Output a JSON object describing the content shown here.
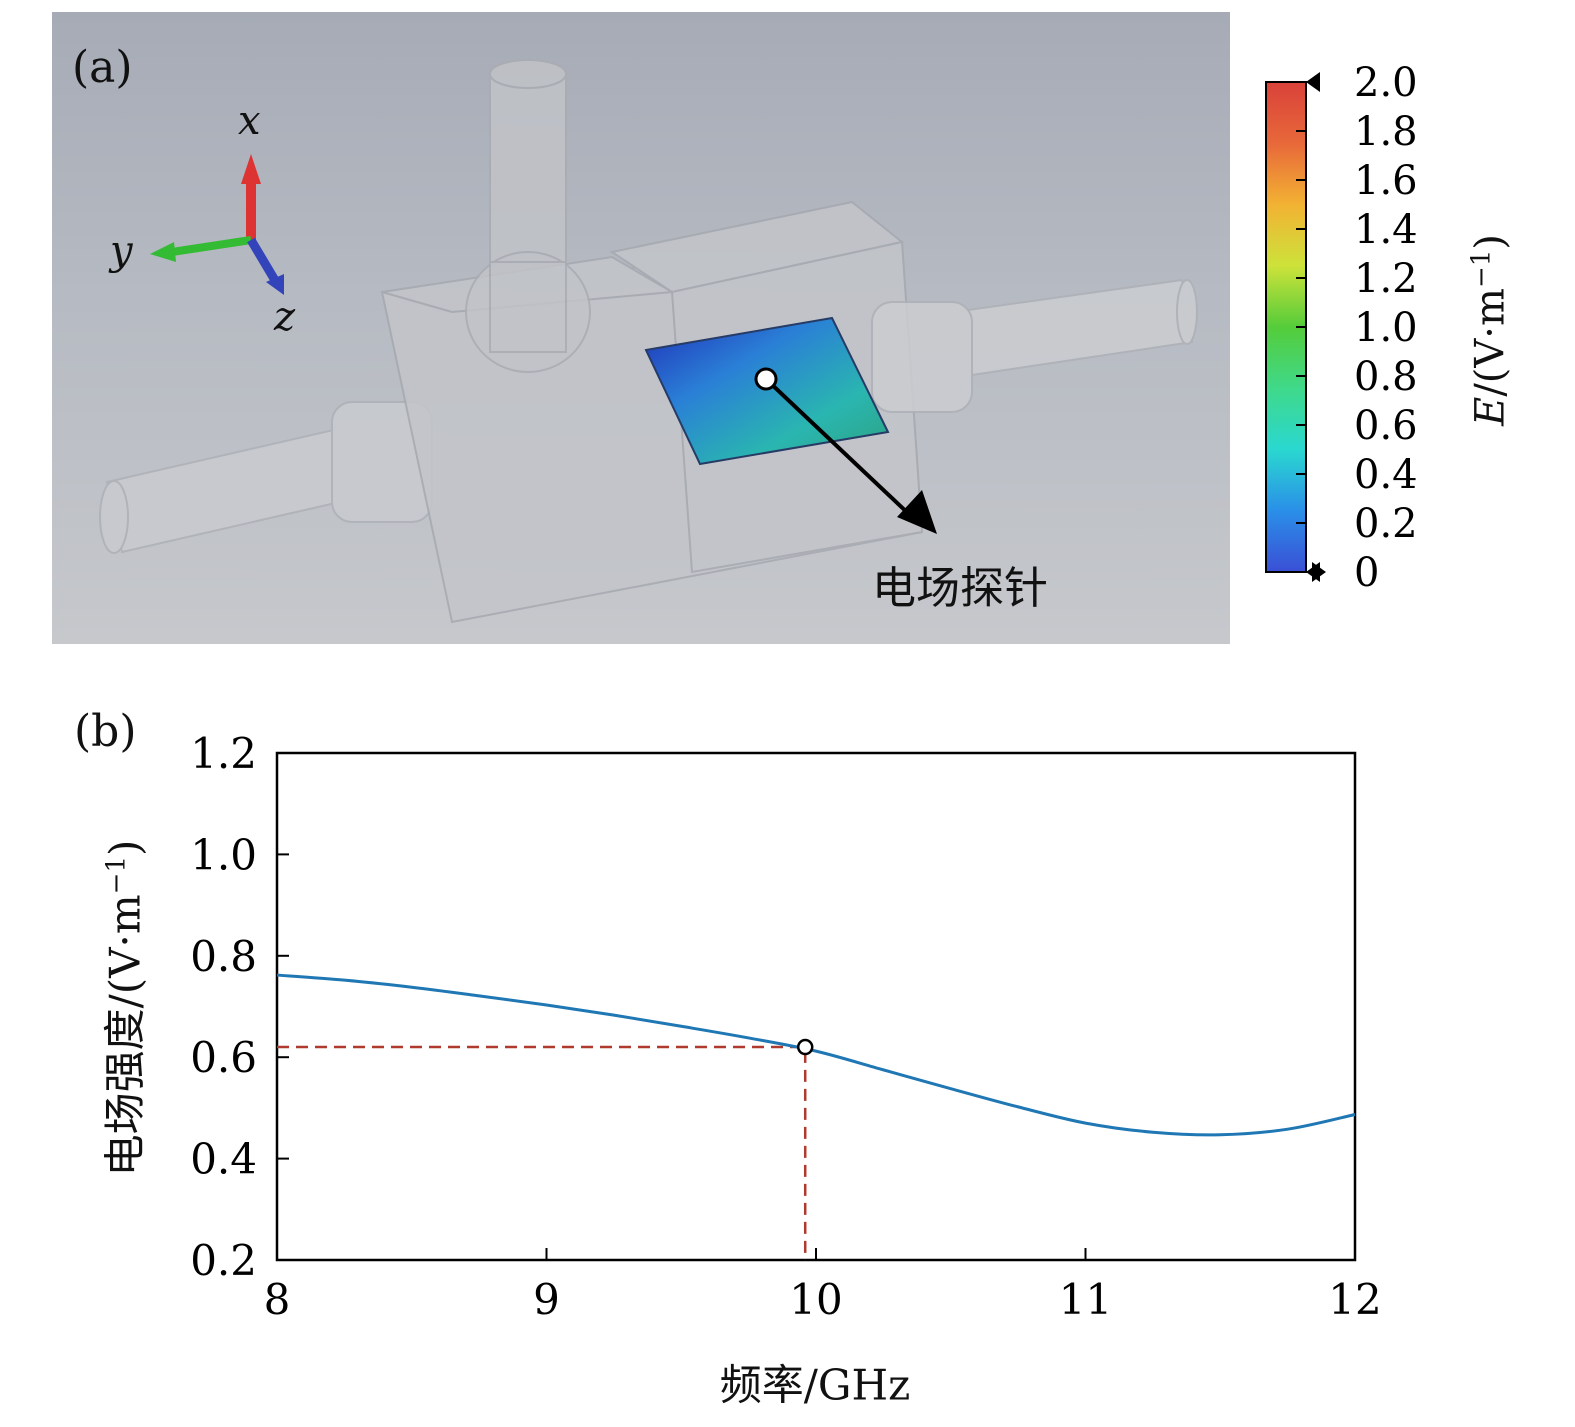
{
  "panel_a": {
    "label": "(a)",
    "axes_triad": {
      "x": "x",
      "y": "y",
      "z": "z"
    },
    "probe_label": "电场探针",
    "colorbar": {
      "ticks": [
        "2.0",
        "1.8",
        "1.6",
        "1.4",
        "1.2",
        "1.0",
        "0.8",
        "0.6",
        "0.4",
        "0.2",
        "0"
      ],
      "range": [
        0,
        2.0
      ],
      "title_italic": "E",
      "title_rest": "/(V·m",
      "title_sup": "−1",
      "title_close": ")",
      "colors": [
        "#3a4fd6",
        "#2a8fe8",
        "#2ad8d0",
        "#3fd98a",
        "#55cc3a",
        "#cde23a",
        "#f2b233",
        "#e8683a",
        "#d9423a"
      ]
    }
  },
  "panel_b": {
    "label": "(b)",
    "chart_data": {
      "type": "line",
      "xlabel_cjk": "频率",
      "xlabel_rest": "/GHz",
      "ylabel_cjk": "电场强度",
      "ylabel_rest": "/(V·m",
      "ylabel_sup": "−1",
      "ylabel_close": ")",
      "xlim": [
        8,
        12
      ],
      "ylim": [
        0.2,
        1.2
      ],
      "xticks": [
        "8",
        "9",
        "10",
        "11",
        "12"
      ],
      "yticks": [
        "0.2",
        "0.4",
        "0.6",
        "0.8",
        "1.0",
        "1.2"
      ],
      "line_color": "#1f77b4",
      "series": [
        {
          "x": [
            8.0,
            8.25,
            8.5,
            8.75,
            9.0,
            9.25,
            9.5,
            9.75,
            10.0,
            10.25,
            10.5,
            10.75,
            11.0,
            11.25,
            11.5,
            11.75,
            12.0
          ],
          "y": [
            0.762,
            0.752,
            0.738,
            0.721,
            0.703,
            0.683,
            0.661,
            0.638,
            0.612,
            0.575,
            0.538,
            0.502,
            0.47,
            0.452,
            0.447,
            0.458,
            0.487
          ]
        }
      ],
      "marker": {
        "x": 9.96,
        "y": 0.62
      },
      "guide_color": "#b03a2e"
    }
  }
}
